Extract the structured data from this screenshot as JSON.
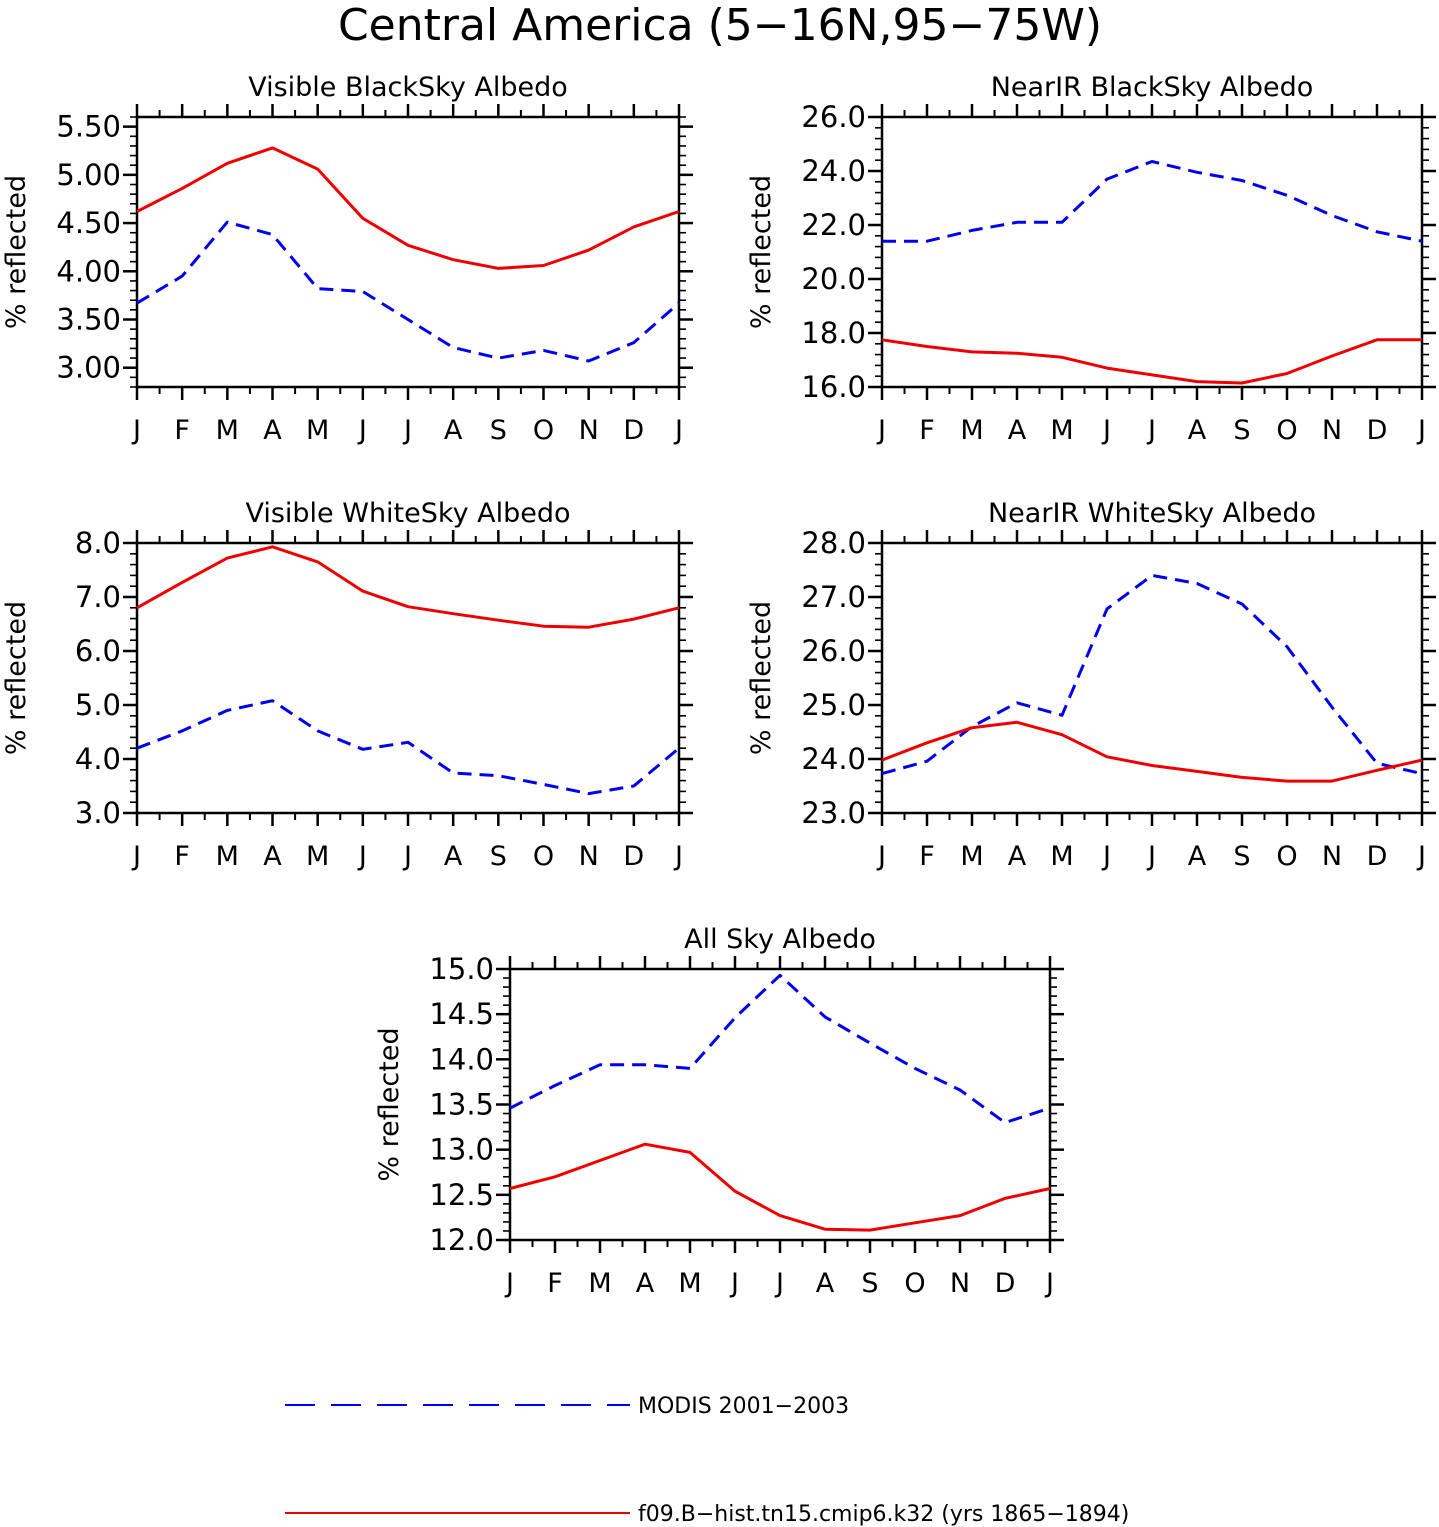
{
  "figure": {
    "title": "Central America (5−16N,95−75W)",
    "legend": {
      "placement": "bottom",
      "entries": [
        {
          "label": "MODIS 2001−2003",
          "color": "#0000ee",
          "dash": "dashed"
        },
        {
          "label": "f09.B−hist.tn15.cmip6.k32 (yrs 1865−1894)",
          "color": "#ee0000",
          "dash": "solid"
        }
      ]
    }
  },
  "chart_data": [
    {
      "type": "line",
      "title": "Visible BlackSky Albedo",
      "ylabel": "% reflected",
      "xlabel": "",
      "categories": [
        "J",
        "F",
        "M",
        "A",
        "M",
        "J",
        "J",
        "A",
        "S",
        "O",
        "N",
        "D",
        "J"
      ],
      "ylim": [
        2.8,
        5.6
      ],
      "yticks": [
        3.0,
        3.5,
        4.0,
        4.5,
        5.0,
        5.5
      ],
      "ytick_labels": [
        "3.00",
        "3.50",
        "4.00",
        "4.50",
        "5.00",
        "5.50"
      ],
      "yminor_step": 0.1,
      "series": [
        {
          "name": "MODIS 2001−2003",
          "color": "#0000ee",
          "dash": "dashed",
          "values": [
            3.67,
            3.95,
            4.51,
            4.38,
            3.82,
            3.79,
            3.5,
            3.21,
            3.1,
            3.18,
            3.07,
            3.26,
            3.67
          ]
        },
        {
          "name": "f09.B−hist.tn15.cmip6.k32 (yrs 1865−1894)",
          "color": "#ee0000",
          "dash": "solid",
          "values": [
            4.62,
            4.86,
            5.12,
            5.28,
            5.06,
            4.55,
            4.27,
            4.12,
            4.03,
            4.06,
            4.22,
            4.46,
            4.62
          ]
        }
      ]
    },
    {
      "type": "line",
      "title": "NearIR BlackSky Albedo",
      "ylabel": "% reflected",
      "xlabel": "",
      "categories": [
        "J",
        "F",
        "M",
        "A",
        "M",
        "J",
        "J",
        "A",
        "S",
        "O",
        "N",
        "D",
        "J"
      ],
      "ylim": [
        16.0,
        26.0
      ],
      "yticks": [
        16,
        18,
        20,
        22,
        24,
        26
      ],
      "ytick_labels": [
        "16.0",
        "18.0",
        "20.0",
        "22.0",
        "24.0",
        "26.0"
      ],
      "yminor_step": 0.4,
      "series": [
        {
          "name": "MODIS 2001−2003",
          "color": "#0000ee",
          "dash": "dashed",
          "values": [
            21.4,
            21.4,
            21.8,
            22.1,
            22.1,
            23.7,
            24.35,
            23.95,
            23.65,
            23.1,
            22.35,
            21.75,
            21.4
          ]
        },
        {
          "name": "f09.B−hist.tn15.cmip6.k32 (yrs 1865−1894)",
          "color": "#ee0000",
          "dash": "solid",
          "values": [
            17.75,
            17.5,
            17.3,
            17.25,
            17.1,
            16.7,
            16.45,
            16.2,
            16.15,
            16.5,
            17.15,
            17.75,
            17.75
          ]
        }
      ]
    },
    {
      "type": "line",
      "title": "Visible WhiteSky Albedo",
      "ylabel": "% reflected",
      "xlabel": "",
      "categories": [
        "J",
        "F",
        "M",
        "A",
        "M",
        "J",
        "J",
        "A",
        "S",
        "O",
        "N",
        "D",
        "J"
      ],
      "ylim": [
        3.0,
        8.0
      ],
      "yticks": [
        3,
        4,
        5,
        6,
        7,
        8
      ],
      "ytick_labels": [
        "3.0",
        "4.0",
        "5.0",
        "6.0",
        "7.0",
        "8.0"
      ],
      "yminor_step": 0.2,
      "series": [
        {
          "name": "MODIS 2001−2003",
          "color": "#0000ee",
          "dash": "dashed",
          "values": [
            4.2,
            4.52,
            4.9,
            5.08,
            4.52,
            4.18,
            4.31,
            3.74,
            3.69,
            3.53,
            3.36,
            3.5,
            4.2
          ]
        },
        {
          "name": "f09.B−hist.tn15.cmip6.k32 (yrs 1865−1894)",
          "color": "#ee0000",
          "dash": "solid",
          "values": [
            6.8,
            7.27,
            7.72,
            7.93,
            7.65,
            7.11,
            6.82,
            6.69,
            6.57,
            6.46,
            6.44,
            6.59,
            6.8
          ]
        }
      ]
    },
    {
      "type": "line",
      "title": "NearIR WhiteSky Albedo",
      "ylabel": "% reflected",
      "xlabel": "",
      "categories": [
        "J",
        "F",
        "M",
        "A",
        "M",
        "J",
        "J",
        "A",
        "S",
        "O",
        "N",
        "D",
        "J"
      ],
      "ylim": [
        23.0,
        28.0
      ],
      "yticks": [
        23,
        24,
        25,
        26,
        27,
        28
      ],
      "ytick_labels": [
        "23.0",
        "24.0",
        "25.0",
        "26.0",
        "27.0",
        "28.0"
      ],
      "yminor_step": 0.2,
      "series": [
        {
          "name": "MODIS 2001−2003",
          "color": "#0000ee",
          "dash": "dashed",
          "values": [
            23.73,
            23.96,
            24.6,
            25.04,
            24.81,
            26.78,
            27.4,
            27.25,
            26.87,
            26.08,
            24.96,
            23.92,
            23.73
          ]
        },
        {
          "name": "f09.B−hist.tn15.cmip6.k32 (yrs 1865−1894)",
          "color": "#ee0000",
          "dash": "solid",
          "values": [
            23.98,
            24.3,
            24.58,
            24.68,
            24.45,
            24.04,
            23.88,
            23.77,
            23.66,
            23.59,
            23.59,
            23.79,
            23.98
          ]
        }
      ]
    },
    {
      "type": "line",
      "title": "All Sky Albedo",
      "ylabel": "% reflected",
      "xlabel": "",
      "categories": [
        "J",
        "F",
        "M",
        "A",
        "M",
        "J",
        "J",
        "A",
        "S",
        "O",
        "N",
        "D",
        "J"
      ],
      "ylim": [
        12.0,
        15.0
      ],
      "yticks": [
        12.0,
        12.5,
        13.0,
        13.5,
        14.0,
        14.5,
        15.0
      ],
      "ytick_labels": [
        "12.0",
        "12.5",
        "13.0",
        "13.5",
        "14.0",
        "14.5",
        "15.0"
      ],
      "yminor_step": 0.1,
      "series": [
        {
          "name": "MODIS 2001−2003",
          "color": "#0000ee",
          "dash": "dashed",
          "values": [
            13.46,
            13.71,
            13.94,
            13.94,
            13.9,
            14.46,
            14.93,
            14.47,
            14.18,
            13.9,
            13.66,
            13.3,
            13.46
          ]
        },
        {
          "name": "f09.B−hist.tn15.cmip6.k32 (yrs 1865−1894)",
          "color": "#ee0000",
          "dash": "solid",
          "values": [
            12.57,
            12.7,
            12.88,
            13.06,
            12.97,
            12.54,
            12.27,
            12.12,
            12.11,
            12.19,
            12.27,
            12.46,
            12.57
          ]
        }
      ]
    }
  ]
}
